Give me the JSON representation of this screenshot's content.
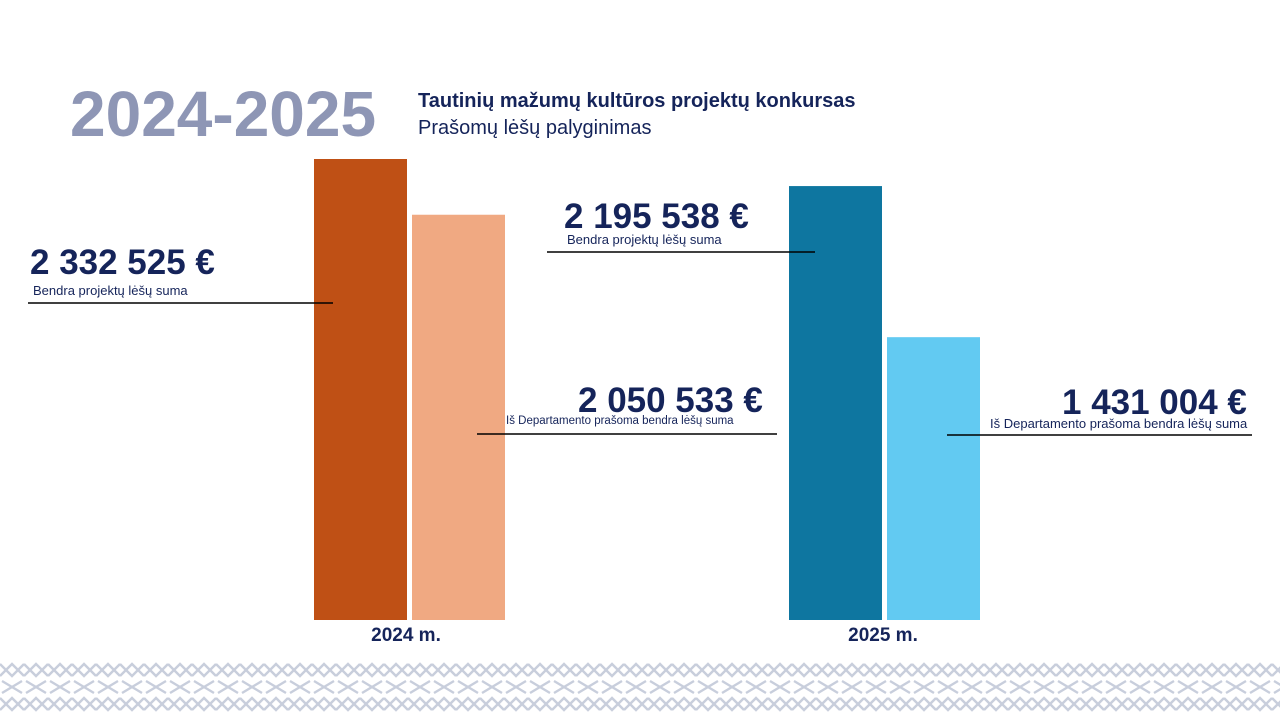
{
  "heading": {
    "years": "2024-2025",
    "title": "Tautinių mažumų kultūros projektų konkursas",
    "subtitle": "Prašomų lėšų palyginimas"
  },
  "colors": {
    "bar_2024_total": "#bf5015",
    "bar_2024_requested": "#f0a982",
    "bar_2025_total": "#0e76a0",
    "bar_2025_requested": "#62caf2",
    "text": "#15245a",
    "pattern": "#c8cedc"
  },
  "chart_data": {
    "type": "bar",
    "categories": [
      "2024 m.",
      "2025 m."
    ],
    "series": [
      {
        "values": [
          2332525,
          2195538
        ]
      },
      {
        "values": [
          2050533,
          1431004
        ]
      }
    ],
    "ylim": [
      0,
      2332525
    ],
    "annotations": [
      {
        "value_text": "2 332 525 €",
        "label": "Bendra projektų lėšų suma"
      },
      {
        "value_text": "2 050 533 €",
        "label": "Iš Departamento prašoma bendra lėšų suma"
      },
      {
        "value_text": "2 195 538 €",
        "label": "Bendra projektų lėšų suma"
      },
      {
        "value_text": "1 431 004 €",
        "label": "Iš Departamento prašoma bendra lėšų suma"
      }
    ],
    "grid": false
  }
}
